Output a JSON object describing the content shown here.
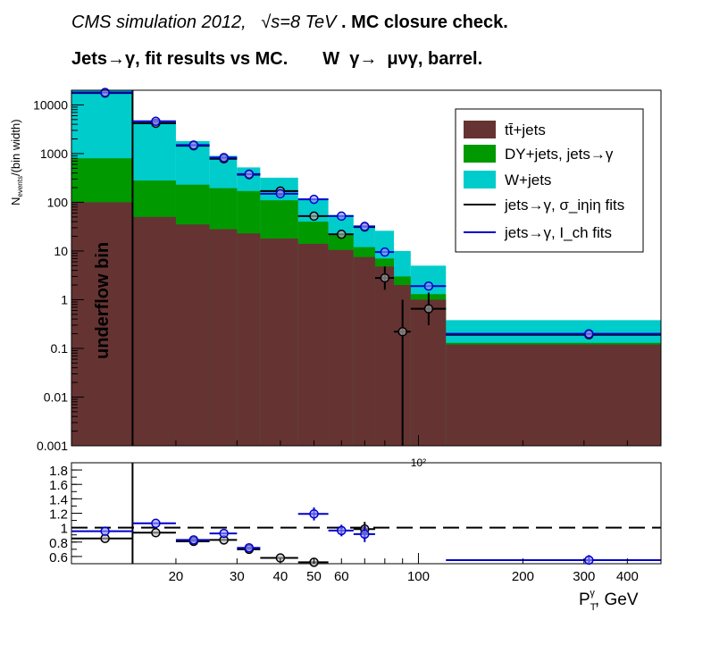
{
  "title": {
    "line1_italic": "CMS simulation 2012,   √s=8 TeV",
    "line1_bold": " . MC closure check.",
    "line2": "Jets→γ, fit results vs MC.       W  γ→  μνγ, barrel."
  },
  "chart_data": [
    {
      "type": "bar",
      "stacked": true,
      "ylabel": "N_events/(bin width)",
      "yscale": "log",
      "ylim": [
        0.001,
        20000
      ],
      "xscale": "log",
      "xlim": [
        10,
        500
      ],
      "annotation": "underflow bin",
      "extra_tick_label": "10²",
      "legend_placement": "top-right",
      "y_tick_labels": [
        "0.001",
        "0.01",
        "0.1",
        "1",
        "10",
        "100",
        "1000",
        "10000"
      ],
      "bin_edges": [
        10,
        15,
        20,
        25,
        30,
        35,
        45,
        55,
        65,
        75,
        85,
        95,
        120,
        500
      ],
      "series": [
        {
          "name": "tt̄+jets",
          "color": "#663333",
          "values": [
            100,
            50,
            35,
            28,
            23,
            18,
            14,
            10.5,
            7.5,
            4.8,
            2.0,
            1.0,
            0.12
          ]
        },
        {
          "name": "DY+jets, jets→γ",
          "color": "#009900",
          "values": [
            800,
            280,
            230,
            195,
            170,
            110,
            40,
            21,
            12,
            7,
            3,
            1.3,
            0.13
          ]
        },
        {
          "name": "W+jets",
          "color": "#00cccc",
          "values": [
            20000,
            4600,
            1800,
            900,
            520,
            320,
            120,
            55,
            32,
            26,
            10,
            5,
            0.38
          ]
        }
      ],
      "points": [
        {
          "name": "jets→γ, σ_iηiη fits",
          "color": "#000000",
          "data": [
            {
              "x": 12.5,
              "y": 17500,
              "xlo": 10,
              "xhi": 15
            },
            {
              "x": 17.5,
              "y": 4200,
              "xlo": 15,
              "xhi": 20
            },
            {
              "x": 22.5,
              "y": 1450,
              "xlo": 20,
              "xhi": 25
            },
            {
              "x": 27.5,
              "y": 780,
              "xlo": 25,
              "xhi": 30
            },
            {
              "x": 32.5,
              "y": 370,
              "xlo": 30,
              "xhi": 35
            },
            {
              "x": 40,
              "y": 170,
              "xlo": 35,
              "xhi": 45
            },
            {
              "x": 50,
              "y": 52,
              "xlo": 45,
              "xhi": 55
            },
            {
              "x": 60,
              "y": 22,
              "xlo": 55,
              "xhi": 65
            },
            {
              "x": 70,
              "y": 31,
              "xlo": 65,
              "xhi": 75
            },
            {
              "x": 80,
              "y": 2.8,
              "ylo": 1.6,
              "yhi": 4.8,
              "xlo": 75,
              "xhi": 85
            },
            {
              "x": 90,
              "y": 0.22,
              "ylo": 0.001,
              "yhi": 1.0,
              "xlo": 85,
              "xhi": 95
            },
            {
              "x": 107,
              "y": 0.65,
              "ylo": 0.3,
              "yhi": 1.4,
              "xlo": 95,
              "xhi": 120
            },
            {
              "x": 310,
              "y": 0.19,
              "xlo": 120,
              "xhi": 500
            }
          ]
        },
        {
          "name": "jets→γ, I_ch fits",
          "color": "#0000cc",
          "data": [
            {
              "x": 12.5,
              "y": 18000,
              "xlo": 10,
              "xhi": 15
            },
            {
              "x": 17.5,
              "y": 4600,
              "xlo": 15,
              "xhi": 20
            },
            {
              "x": 22.5,
              "y": 1500,
              "xlo": 20,
              "xhi": 25
            },
            {
              "x": 27.5,
              "y": 830,
              "xlo": 25,
              "xhi": 30
            },
            {
              "x": 32.5,
              "y": 380,
              "xlo": 30,
              "xhi": 35
            },
            {
              "x": 40,
              "y": 150,
              "xlo": 35,
              "xhi": 45
            },
            {
              "x": 50,
              "y": 115,
              "xlo": 45,
              "xhi": 55
            },
            {
              "x": 60,
              "y": 52,
              "xlo": 55,
              "xhi": 65
            },
            {
              "x": 70,
              "y": 32,
              "xlo": 65,
              "xhi": 75
            },
            {
              "x": 80,
              "y": 9.5,
              "xlo": 75,
              "xhi": 85
            },
            {
              "x": 107,
              "y": 1.9,
              "xlo": 95,
              "xhi": 120
            },
            {
              "x": 310,
              "y": 0.2,
              "xlo": 120,
              "xhi": 500
            }
          ]
        }
      ]
    },
    {
      "type": "scatter",
      "xlabel": "P_T^γ, GeV",
      "xscale": "log",
      "xlim": [
        10,
        500
      ],
      "ylim": [
        0.5,
        1.9
      ],
      "reference_line": 1.0,
      "y_tick_labels": [
        "0.6",
        "0.8",
        "1",
        "1.2",
        "1.4",
        "1.6",
        "1.8"
      ],
      "x_tick_labels": [
        "20",
        "30",
        "40",
        "50",
        "60",
        "100",
        "200",
        "300",
        "400"
      ],
      "series": [
        {
          "name": "jets→γ, σ_iηiη fits",
          "color": "#000000",
          "data": [
            {
              "x": 12.5,
              "y": 0.85,
              "xlo": 10,
              "xhi": 15
            },
            {
              "x": 17.5,
              "y": 0.93,
              "xlo": 15,
              "xhi": 20
            },
            {
              "x": 22.5,
              "y": 0.81,
              "xlo": 20,
              "xhi": 25
            },
            {
              "x": 27.5,
              "y": 0.83,
              "xlo": 25,
              "xhi": 30
            },
            {
              "x": 32.5,
              "y": 0.7,
              "xlo": 30,
              "xhi": 35
            },
            {
              "x": 40,
              "y": 0.58,
              "xlo": 35,
              "xhi": 45
            },
            {
              "x": 50,
              "y": 0.52,
              "xlo": 45,
              "xhi": 55
            },
            {
              "x": 70,
              "y": 0.98,
              "ylo": 0.85,
              "yhi": 1.08,
              "xlo": 65,
              "xhi": 75
            }
          ]
        },
        {
          "name": "jets→γ, I_ch fits",
          "color": "#0000cc",
          "data": [
            {
              "x": 12.5,
              "y": 0.95,
              "xlo": 10,
              "xhi": 15
            },
            {
              "x": 17.5,
              "y": 1.06,
              "xlo": 15,
              "xhi": 20
            },
            {
              "x": 22.5,
              "y": 0.83,
              "xlo": 20,
              "xhi": 25
            },
            {
              "x": 27.5,
              "y": 0.92,
              "xlo": 25,
              "xhi": 30
            },
            {
              "x": 32.5,
              "y": 0.72,
              "xlo": 30,
              "xhi": 35
            },
            {
              "x": 50,
              "y": 1.19,
              "ylo": 1.1,
              "yhi": 1.28,
              "xlo": 45,
              "xhi": 55
            },
            {
              "x": 60,
              "y": 0.96,
              "ylo": 0.88,
              "yhi": 1.04,
              "xlo": 55,
              "xhi": 65
            },
            {
              "x": 70,
              "y": 0.91,
              "ylo": 0.8,
              "yhi": 1.02,
              "xlo": 65,
              "xhi": 75
            },
            {
              "x": 310,
              "y": 0.55,
              "ylo": 0.5,
              "yhi": 0.62,
              "xlo": 120,
              "xhi": 500
            }
          ]
        }
      ]
    }
  ]
}
